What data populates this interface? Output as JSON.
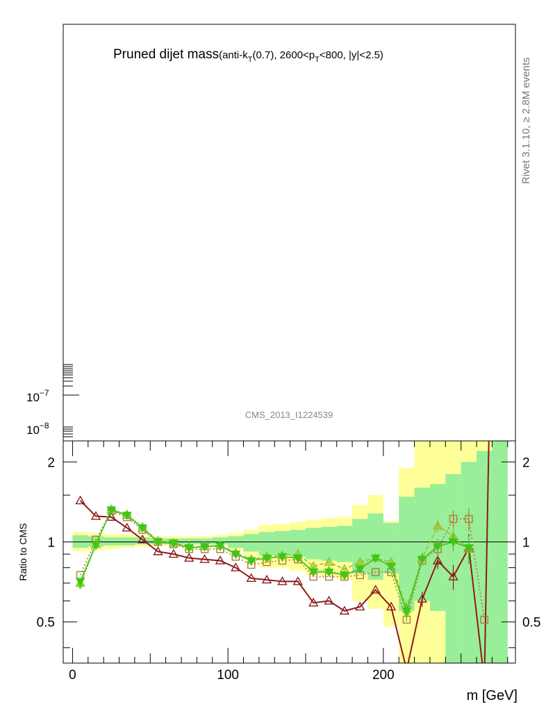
{
  "title": {
    "main": "Pruned dijet mass",
    "detail_prefix": "(anti-k",
    "detail_sub1": "T",
    "detail_mid": "(0.7), 2600<p",
    "detail_sub2": "T",
    "detail_suffix": "<800, |y|<2.5)"
  },
  "side_label": "Rivet 3.1.10, ≥ 2.8M events",
  "watermark": "CMS_2013_I1224539",
  "chart_data": {
    "type": "line",
    "top_panel": {
      "y_scale": "log",
      "tick_labels": [
        {
          "base": "10",
          "exp": "−7",
          "value": 1e-07
        },
        {
          "base": "10",
          "exp": "−8",
          "value": 1e-08
        }
      ]
    },
    "ratio_panel": {
      "ylabel": "Ratio to CMS",
      "y_scale": "log",
      "ylim": [
        0.35,
        2.4
      ],
      "xlim": [
        -6,
        285
      ],
      "yticks": [
        {
          "v": 0.5,
          "label": "0.5"
        },
        {
          "v": 1,
          "label": "1"
        },
        {
          "v": 2,
          "label": "2"
        }
      ],
      "xticks": [
        {
          "v": 0,
          "label": "0"
        },
        {
          "v": 100,
          "label": "100"
        },
        {
          "v": 200,
          "label": "200"
        }
      ]
    },
    "xlabel": "m [GeV]",
    "bins": [
      0,
      10,
      20,
      30,
      40,
      50,
      60,
      70,
      80,
      90,
      100,
      110,
      120,
      130,
      140,
      150,
      160,
      170,
      180,
      190,
      200,
      210,
      220,
      230,
      240,
      250,
      260,
      270,
      280
    ],
    "bands": {
      "outer": [
        [
          0.92,
          1.09
        ],
        [
          0.93,
          1.08
        ],
        [
          0.94,
          1.07
        ],
        [
          0.95,
          1.07
        ],
        [
          0.96,
          1.06
        ],
        [
          0.97,
          1.05
        ],
        [
          0.97,
          1.05
        ],
        [
          0.97,
          1.05
        ],
        [
          0.97,
          1.05
        ],
        [
          0.97,
          1.06
        ],
        [
          0.93,
          1.08
        ],
        [
          0.88,
          1.11
        ],
        [
          0.8,
          1.16
        ],
        [
          0.8,
          1.17
        ],
        [
          0.78,
          1.19
        ],
        [
          0.75,
          1.21
        ],
        [
          0.74,
          1.23
        ],
        [
          0.72,
          1.24
        ],
        [
          0.6,
          1.38
        ],
        [
          0.56,
          1.5
        ],
        [
          0.48,
          1.2
        ],
        [
          0.3,
          1.9
        ],
        [
          0.3,
          2.5
        ],
        [
          0.3,
          2.5
        ],
        [
          0.3,
          2.5
        ],
        [
          0.3,
          2.5
        ],
        [
          0.3,
          2.5
        ],
        [
          0.3,
          2.5
        ]
      ],
      "inner": [
        [
          0.95,
          1.06
        ],
        [
          0.96,
          1.05
        ],
        [
          0.97,
          1.04
        ],
        [
          0.97,
          1.04
        ],
        [
          0.98,
          1.04
        ],
        [
          0.98,
          1.03
        ],
        [
          0.98,
          1.03
        ],
        [
          0.98,
          1.03
        ],
        [
          0.98,
          1.03
        ],
        [
          0.98,
          1.04
        ],
        [
          0.95,
          1.05
        ],
        [
          0.92,
          1.07
        ],
        [
          0.89,
          1.09
        ],
        [
          0.89,
          1.1
        ],
        [
          0.88,
          1.11
        ],
        [
          0.86,
          1.13
        ],
        [
          0.85,
          1.14
        ],
        [
          0.84,
          1.15
        ],
        [
          0.76,
          1.22
        ],
        [
          0.72,
          1.28
        ],
        [
          0.76,
          1.18
        ],
        [
          0.55,
          1.48
        ],
        [
          0.6,
          1.6
        ],
        [
          0.55,
          1.65
        ],
        [
          0.3,
          1.8
        ],
        [
          0.3,
          2.0
        ],
        [
          0.3,
          2.2
        ],
        [
          0.3,
          2.5
        ]
      ]
    },
    "series": [
      {
        "color": "#8b1a1a",
        "marker": "triangle",
        "dash": "",
        "x": [
          5,
          15,
          25,
          35,
          45,
          55,
          65,
          75,
          85,
          95,
          105,
          115,
          125,
          135,
          145,
          155,
          165,
          175,
          185,
          195,
          205,
          215,
          225,
          235,
          245,
          255,
          265,
          268
        ],
        "y": [
          1.43,
          1.25,
          1.24,
          1.13,
          1.02,
          0.92,
          0.9,
          0.87,
          0.86,
          0.85,
          0.8,
          0.73,
          0.72,
          0.71,
          0.71,
          0.59,
          0.6,
          0.55,
          0.57,
          0.66,
          0.57,
          0.33,
          0.61,
          0.85,
          0.74,
          0.95,
          0.3,
          2.6
        ],
        "err": [
          0,
          0,
          0,
          0,
          0,
          0,
          0,
          0,
          0,
          0,
          0,
          0,
          0,
          0,
          0,
          0,
          0,
          0,
          0,
          0,
          0,
          0,
          0.04,
          0.06,
          0.08,
          0.12,
          0,
          0
        ]
      },
      {
        "color": "#b07a3a",
        "marker": "square",
        "dash": "2,3",
        "x": [
          5,
          15,
          25,
          35,
          45,
          55,
          65,
          75,
          85,
          95,
          105,
          115,
          125,
          135,
          145,
          155,
          165,
          175,
          185,
          195,
          205,
          215,
          225,
          235,
          245,
          255,
          265
        ],
        "y": [
          0.75,
          1.02,
          1.31,
          1.24,
          1.11,
          1.0,
          0.98,
          0.94,
          0.94,
          0.94,
          0.88,
          0.82,
          0.84,
          0.85,
          0.86,
          0.74,
          0.74,
          0.74,
          0.75,
          0.77,
          0.77,
          0.51,
          0.85,
          0.94,
          1.22,
          1.22,
          0.51
        ],
        "err": [
          0,
          0,
          0,
          0,
          0,
          0,
          0,
          0,
          0,
          0,
          0,
          0,
          0,
          0,
          0,
          0,
          0,
          0,
          0,
          0,
          0,
          0,
          0.03,
          0.06,
          0.09,
          0.12,
          0
        ]
      },
      {
        "color": "#9bbf2a",
        "marker": "triangle",
        "dash": "6,3",
        "x": [
          5,
          15,
          25,
          35,
          45,
          55,
          65,
          75,
          85,
          95,
          105,
          115,
          125,
          135,
          145,
          155,
          165,
          175,
          185,
          195,
          205,
          215,
          225,
          235,
          245,
          255
        ],
        "y": [
          0.7,
          0.98,
          1.32,
          1.26,
          1.13,
          1.01,
          0.99,
          0.96,
          0.96,
          0.97,
          0.91,
          0.86,
          0.88,
          0.89,
          0.9,
          0.81,
          0.84,
          0.79,
          0.84,
          0.87,
          0.84,
          0.56,
          0.87,
          1.15,
          1.05,
          0.94
        ],
        "err": [
          0,
          0,
          0,
          0,
          0,
          0,
          0,
          0,
          0,
          0,
          0,
          0,
          0,
          0,
          0,
          0,
          0,
          0,
          0,
          0,
          0,
          0.04,
          0.04,
          0.06,
          0.08,
          0.1
        ]
      },
      {
        "color": "#6fd42a",
        "marker": "diamond",
        "dash": "2,2",
        "x": [
          5,
          15,
          25,
          35,
          45,
          55,
          65,
          75,
          85,
          95,
          105,
          115,
          125,
          135,
          145,
          155,
          165,
          175,
          185,
          195,
          205,
          215,
          225,
          235,
          245,
          255
        ],
        "y": [
          0.69,
          0.97,
          1.33,
          1.27,
          1.14,
          1.0,
          0.99,
          0.95,
          0.96,
          0.96,
          0.9,
          0.85,
          0.87,
          0.88,
          0.87,
          0.78,
          0.78,
          0.75,
          0.8,
          0.87,
          0.81,
          0.54,
          0.86,
          0.97,
          1.02,
          0.95
        ],
        "err": [
          0,
          0,
          0,
          0,
          0,
          0,
          0,
          0,
          0,
          0,
          0,
          0,
          0,
          0,
          0,
          0,
          0,
          0,
          0,
          0,
          0,
          0.04,
          0.04,
          0.06,
          0.08,
          0.1
        ]
      },
      {
        "color": "#3ec61a",
        "marker": "triangle-down",
        "dash": "",
        "x": [
          5,
          15,
          25,
          35,
          45,
          55,
          65,
          75,
          85,
          95,
          105,
          115,
          125,
          135,
          145,
          155,
          165,
          175,
          185,
          195,
          205,
          215,
          225,
          235,
          245,
          255
        ],
        "y": [
          0.71,
          0.98,
          1.32,
          1.26,
          1.13,
          1.0,
          0.99,
          0.95,
          0.96,
          0.97,
          0.9,
          0.85,
          0.87,
          0.88,
          0.87,
          0.77,
          0.77,
          0.75,
          0.79,
          0.87,
          0.81,
          0.55,
          0.86,
          0.96,
          1.0,
          0.95
        ],
        "err": [
          0,
          0,
          0,
          0,
          0,
          0,
          0,
          0,
          0,
          0,
          0,
          0,
          0,
          0,
          0,
          0,
          0,
          0,
          0,
          0,
          0,
          0.04,
          0.04,
          0.06,
          0.08,
          0.1
        ]
      }
    ]
  }
}
